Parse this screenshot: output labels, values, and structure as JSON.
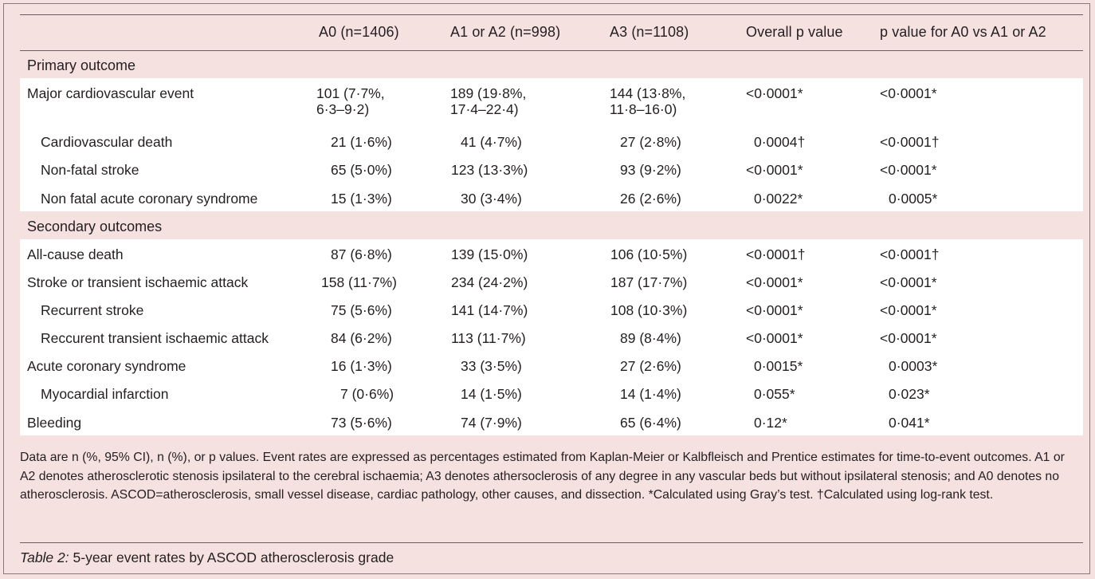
{
  "table": {
    "headers": [
      "",
      "A0 (n=1406)",
      "A1 or A2  (n=998)",
      "A3 (n=1108)",
      "Overall p value",
      "p value for A0 vs A1 or A2"
    ],
    "sections": [
      {
        "title": "Primary outcome",
        "rows": [
          {
            "label": "Major cardiovascular event",
            "indent": false,
            "cells": [
              "101 (7·7%, 6·3–9·2)",
              "189 (19·8%, 17·4–22·4)",
              "144 (13·8%, 11·8–16·0)",
              "<0·0001*",
              "<0·0001*"
            ]
          },
          {
            "label": "Cardiovascular death",
            "indent": true,
            "cells": [
              "21 (1·6%)",
              "41 (4·7%)",
              "27 (2·8%)",
              "0·0004†",
              "<0·0001†"
            ]
          },
          {
            "label": "Non-fatal stroke",
            "indent": true,
            "cells": [
              "65 (5·0%)",
              "123 (13·3%)",
              "93 (9·2%)",
              "<0·0001*",
              "<0·0001*"
            ]
          },
          {
            "label": "Non fatal acute coronary syndrome",
            "indent": true,
            "cells": [
              "15 (1·3%)",
              "30 (3·4%)",
              "26 (2·6%)",
              "0·0022*",
              "0·0005*"
            ]
          }
        ]
      },
      {
        "title": "Secondary outcomes",
        "rows": [
          {
            "label": "All-cause death",
            "indent": false,
            "cells": [
              "87 (6·8%)",
              "139 (15·0%)",
              "106 (10·5%)",
              "<0·0001†",
              "<0·0001†"
            ]
          },
          {
            "label": "Stroke or transient ischaemic attack",
            "indent": false,
            "cells": [
              "158 (11·7%)",
              "234 (24·2%)",
              "187 (17·7%)",
              "<0·0001*",
              "<0·0001*"
            ]
          },
          {
            "label": "Recurrent stroke",
            "indent": true,
            "cells": [
              "75 (5·6%)",
              "141 (14·7%)",
              "108 (10·3%)",
              "<0·0001*",
              "<0·0001*"
            ]
          },
          {
            "label": "Reccurent transient ischaemic attack",
            "indent": true,
            "cells": [
              "84 (6·2%)",
              "113 (11·7%)",
              "89 (8·4%)",
              "<0·0001*",
              "<0·0001*"
            ]
          },
          {
            "label": "Acute coronary syndrome",
            "indent": false,
            "cells": [
              "16 (1·3%)",
              "33 (3·5%)",
              "27 (2·6%)",
              "0·0015*",
              "0·0003*"
            ]
          },
          {
            "label": "Myocardial infarction",
            "indent": true,
            "cells": [
              "7 (0·6%)",
              "14 (1·5%)",
              "14 (1·4%)",
              "0·055*",
              "0·023*"
            ]
          },
          {
            "label": "Bleeding",
            "indent": false,
            "cells": [
              "73 (5·6%)",
              "74 (7·9%)",
              "65 (6·4%)",
              "0·12*",
              "0·041*"
            ]
          }
        ]
      }
    ]
  },
  "footnote": "Data are n (%, 95% CI), n (%), or p values. Event rates are expressed as percentages estimated from Kaplan-Meier or Kalbfleisch and Prentice estimates for time-to-event outcomes. A1 or A2 denotes atherosclerotic stenosis ipsilateral to the cerebral ischaemia; A3 denotes athersoclerosis of any degree in any vascular beds but without ipsilateral stenosis; and A0 denotes no atherosclerosis. ASCOD=atherosclerosis, small vessel disease, cardiac pathology, other causes, and dissection. *Calculated using Gray’s test. †Calculated using log-rank test.",
  "caption": {
    "label": "Table 2:",
    "text": " 5-year event rates by ASCOD atherosclerosis grade"
  },
  "colors": {
    "background": "#f6e1e1",
    "band": "#ffffff",
    "rule": "#6f5c5d",
    "text": "#231f20"
  }
}
